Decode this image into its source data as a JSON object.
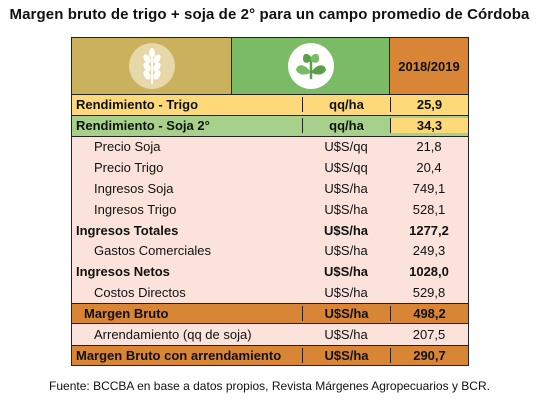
{
  "title": "Margen bruto de trigo + soja de 2° para un campo promedio de Córdoba",
  "header": {
    "year": "2018/2019",
    "icons": [
      "wheat-icon",
      "soy-plant-icon"
    ]
  },
  "rows": [
    {
      "concept": "Rendimiento - Trigo",
      "unit": "qq/ha",
      "value": "25,9"
    },
    {
      "concept": "Rendimiento - Soja 2°",
      "unit": "qq/ha",
      "value": "34,3"
    },
    {
      "concept": "Precio Soja",
      "unit": "U$S/qq",
      "value": "21,8"
    },
    {
      "concept": "Precio Trigo",
      "unit": "U$S/qq",
      "value": "20,4"
    },
    {
      "concept": "Ingresos Soja",
      "unit": "U$S/ha",
      "value": "749,1"
    },
    {
      "concept": "Ingresos Trigo",
      "unit": "U$S/ha",
      "value": "528,1"
    },
    {
      "concept": "Ingresos Totales",
      "unit": "U$S/ha",
      "value": "1277,2"
    },
    {
      "concept": "Gastos Comerciales",
      "unit": "U$S/ha",
      "value": "249,3"
    },
    {
      "concept": "Ingresos Netos",
      "unit": "U$S/ha",
      "value": "1028,0"
    },
    {
      "concept": "Costos Directos",
      "unit": "U$S/ha",
      "value": "529,8"
    },
    {
      "concept": "Margen Bruto",
      "unit": "U$S/ha",
      "value": "498,2"
    },
    {
      "concept": "Arrendamiento (qq de soja)",
      "unit": "U$S/ha",
      "value": "207,5"
    },
    {
      "concept": "Margen Bruto con arrendamiento",
      "unit": "U$S/ha",
      "value": "290,7"
    }
  ],
  "source": "Fuente: BCCBA en base a datos propios, Revista Márgenes Agropecuarios y BCR.",
  "colors": {
    "header_wheat": "#c9b15e",
    "header_soy": "#7bbb65",
    "header_year": "#d88636",
    "yellow_row": "#fdd97a",
    "green_row": "#a7d18a",
    "pink_row": "#fbe3dc",
    "orange_row": "#d88636"
  }
}
